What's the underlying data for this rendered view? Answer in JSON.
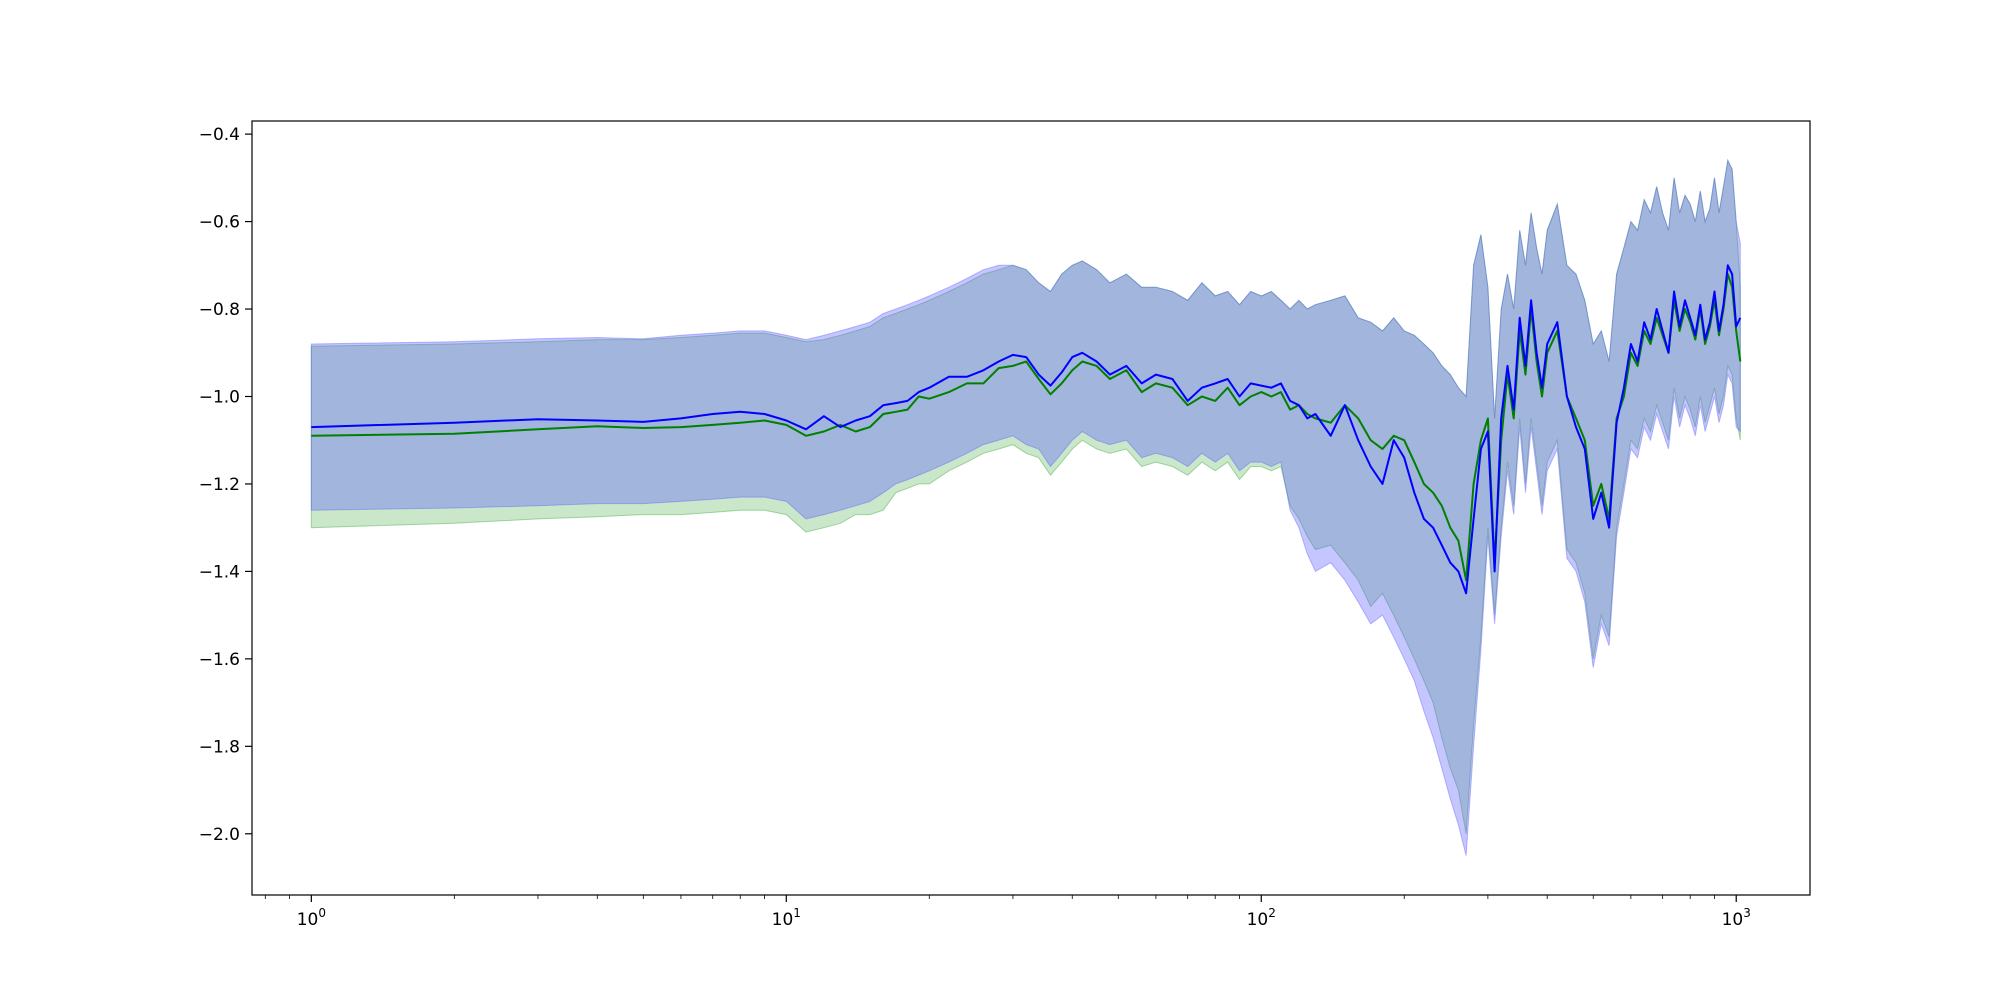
{
  "chart_data": {
    "type": "line",
    "title": "",
    "xlabel": "",
    "ylabel": "",
    "xscale": "log",
    "xlim": [
      0.75,
      1430
    ],
    "ylim": [
      -2.14,
      -0.37
    ],
    "grid": false,
    "legend": "none",
    "x_ticks": [
      {
        "base": "10",
        "exp": "0",
        "value": 1
      },
      {
        "base": "10",
        "exp": "1",
        "value": 10
      },
      {
        "base": "10",
        "exp": "2",
        "value": 100
      },
      {
        "base": "10",
        "exp": "3",
        "value": 1000
      }
    ],
    "y_ticks": [
      -0.4,
      -0.6,
      -0.8,
      -1.0,
      -1.2,
      -1.4,
      -1.6,
      -1.8,
      -2.0
    ],
    "series": [
      {
        "color": "#008000",
        "band_color": "#2ca02c",
        "x": [
          1,
          2,
          3,
          4,
          5,
          6,
          7,
          8,
          9,
          10,
          11,
          12,
          13,
          14,
          15,
          16,
          17,
          18,
          19,
          20,
          22,
          24,
          26,
          28,
          30,
          32,
          34,
          36,
          38,
          40,
          42,
          45,
          48,
          52,
          56,
          60,
          65,
          70,
          75,
          80,
          85,
          90,
          95,
          100,
          105,
          110,
          115,
          120,
          125,
          130,
          140,
          150,
          160,
          170,
          180,
          190,
          200,
          210,
          220,
          230,
          240,
          250,
          260,
          270,
          280,
          290,
          300,
          310,
          320,
          330,
          340,
          350,
          360,
          370,
          380,
          390,
          400,
          420,
          440,
          460,
          480,
          500,
          520,
          540,
          560,
          580,
          600,
          620,
          640,
          660,
          680,
          700,
          720,
          740,
          760,
          780,
          800,
          820,
          840,
          860,
          880,
          900,
          920,
          940,
          960,
          980,
          1000,
          1020
        ],
        "mean": [
          -1.09,
          -1.085,
          -1.075,
          -1.068,
          -1.072,
          -1.07,
          -1.065,
          -1.06,
          -1.055,
          -1.065,
          -1.09,
          -1.08,
          -1.065,
          -1.08,
          -1.07,
          -1.04,
          -1.035,
          -1.03,
          -1.0,
          -1.005,
          -0.99,
          -0.97,
          -0.97,
          -0.935,
          -0.93,
          -0.92,
          -0.96,
          -0.995,
          -0.97,
          -0.94,
          -0.92,
          -0.93,
          -0.96,
          -0.94,
          -0.99,
          -0.97,
          -0.98,
          -1.02,
          -1.0,
          -1.01,
          -0.98,
          -1.02,
          -1.0,
          -0.99,
          -1.0,
          -0.99,
          -1.03,
          -1.02,
          -1.04,
          -1.05,
          -1.06,
          -1.02,
          -1.05,
          -1.1,
          -1.12,
          -1.09,
          -1.1,
          -1.15,
          -1.2,
          -1.22,
          -1.25,
          -1.3,
          -1.33,
          -1.42,
          -1.2,
          -1.1,
          -1.05,
          -1.38,
          -1.1,
          -0.95,
          -1.05,
          -0.85,
          -0.95,
          -0.8,
          -0.92,
          -1.0,
          -0.9,
          -0.85,
          -1.0,
          -1.05,
          -1.1,
          -1.25,
          -1.2,
          -1.28,
          -1.05,
          -1.0,
          -0.9,
          -0.93,
          -0.85,
          -0.88,
          -0.82,
          -0.86,
          -0.9,
          -0.78,
          -0.85,
          -0.8,
          -0.83,
          -0.87,
          -0.8,
          -0.88,
          -0.84,
          -0.78,
          -0.86,
          -0.8,
          -0.72,
          -0.75,
          -0.85,
          -0.92
        ],
        "lower": [
          -1.3,
          -1.29,
          -1.28,
          -1.275,
          -1.27,
          -1.27,
          -1.265,
          -1.26,
          -1.26,
          -1.27,
          -1.31,
          -1.3,
          -1.29,
          -1.27,
          -1.27,
          -1.26,
          -1.22,
          -1.21,
          -1.2,
          -1.2,
          -1.17,
          -1.15,
          -1.13,
          -1.12,
          -1.11,
          -1.13,
          -1.14,
          -1.18,
          -1.15,
          -1.12,
          -1.1,
          -1.12,
          -1.13,
          -1.12,
          -1.16,
          -1.15,
          -1.16,
          -1.18,
          -1.15,
          -1.17,
          -1.15,
          -1.19,
          -1.16,
          -1.16,
          -1.17,
          -1.16,
          -1.25,
          -1.28,
          -1.32,
          -1.35,
          -1.34,
          -1.38,
          -1.42,
          -1.48,
          -1.45,
          -1.5,
          -1.55,
          -1.6,
          -1.65,
          -1.7,
          -1.78,
          -1.85,
          -1.9,
          -2.0,
          -1.75,
          -1.55,
          -1.3,
          -1.5,
          -1.3,
          -1.15,
          -1.25,
          -1.05,
          -1.2,
          -1.05,
          -1.15,
          -1.25,
          -1.15,
          -1.1,
          -1.35,
          -1.38,
          -1.45,
          -1.6,
          -1.5,
          -1.55,
          -1.3,
          -1.2,
          -1.1,
          -1.12,
          -1.05,
          -1.08,
          -1.02,
          -1.06,
          -1.1,
          -0.98,
          -1.05,
          -1.0,
          -1.03,
          -1.07,
          -1.0,
          -1.06,
          -1.02,
          -0.98,
          -1.04,
          -1.0,
          -0.93,
          -0.95,
          -1.05,
          -1.1
        ],
        "upper": [
          -0.885,
          -0.88,
          -0.875,
          -0.87,
          -0.87,
          -0.865,
          -0.86,
          -0.855,
          -0.855,
          -0.865,
          -0.875,
          -0.87,
          -0.86,
          -0.85,
          -0.84,
          -0.82,
          -0.81,
          -0.8,
          -0.79,
          -0.78,
          -0.76,
          -0.74,
          -0.72,
          -0.71,
          -0.7,
          -0.71,
          -0.74,
          -0.76,
          -0.72,
          -0.7,
          -0.69,
          -0.71,
          -0.74,
          -0.72,
          -0.75,
          -0.75,
          -0.76,
          -0.78,
          -0.74,
          -0.77,
          -0.76,
          -0.79,
          -0.76,
          -0.77,
          -0.76,
          -0.78,
          -0.8,
          -0.78,
          -0.8,
          -0.79,
          -0.78,
          -0.77,
          -0.82,
          -0.83,
          -0.85,
          -0.82,
          -0.85,
          -0.86,
          -0.88,
          -0.9,
          -0.93,
          -0.95,
          -0.98,
          -1.0,
          -0.7,
          -0.63,
          -0.75,
          -1.05,
          -0.8,
          -0.72,
          -0.8,
          -0.62,
          -0.7,
          -0.58,
          -0.66,
          -0.72,
          -0.62,
          -0.56,
          -0.7,
          -0.72,
          -0.78,
          -0.88,
          -0.85,
          -0.92,
          -0.72,
          -0.66,
          -0.6,
          -0.62,
          -0.55,
          -0.58,
          -0.52,
          -0.58,
          -0.62,
          -0.5,
          -0.58,
          -0.54,
          -0.56,
          -0.6,
          -0.53,
          -0.6,
          -0.57,
          -0.5,
          -0.58,
          -0.52,
          -0.46,
          -0.48,
          -0.6,
          -0.75
        ]
      },
      {
        "color": "#0000ff",
        "band_color": "#5a5aff",
        "x": [
          1,
          2,
          3,
          4,
          5,
          6,
          7,
          8,
          9,
          10,
          11,
          12,
          13,
          14,
          15,
          16,
          17,
          18,
          19,
          20,
          22,
          24,
          26,
          28,
          30,
          32,
          34,
          36,
          38,
          40,
          42,
          45,
          48,
          52,
          56,
          60,
          65,
          70,
          75,
          80,
          85,
          90,
          95,
          100,
          105,
          110,
          115,
          120,
          125,
          130,
          140,
          150,
          160,
          170,
          180,
          190,
          200,
          210,
          220,
          230,
          240,
          250,
          260,
          270,
          280,
          290,
          300,
          310,
          320,
          330,
          340,
          350,
          360,
          370,
          380,
          390,
          400,
          420,
          440,
          460,
          480,
          500,
          520,
          540,
          560,
          580,
          600,
          620,
          640,
          660,
          680,
          700,
          720,
          740,
          760,
          780,
          800,
          820,
          840,
          860,
          880,
          900,
          920,
          940,
          960,
          980,
          1000,
          1020
        ],
        "mean": [
          -1.07,
          -1.06,
          -1.052,
          -1.055,
          -1.058,
          -1.05,
          -1.04,
          -1.035,
          -1.04,
          -1.055,
          -1.075,
          -1.045,
          -1.07,
          -1.055,
          -1.045,
          -1.02,
          -1.015,
          -1.01,
          -0.99,
          -0.98,
          -0.955,
          -0.955,
          -0.94,
          -0.92,
          -0.905,
          -0.91,
          -0.95,
          -0.975,
          -0.945,
          -0.91,
          -0.9,
          -0.92,
          -0.95,
          -0.93,
          -0.97,
          -0.95,
          -0.96,
          -1.01,
          -0.98,
          -0.97,
          -0.96,
          -1.0,
          -0.97,
          -0.975,
          -0.98,
          -0.97,
          -1.01,
          -1.02,
          -1.05,
          -1.04,
          -1.09,
          -1.02,
          -1.1,
          -1.16,
          -1.2,
          -1.1,
          -1.14,
          -1.22,
          -1.28,
          -1.3,
          -1.34,
          -1.38,
          -1.4,
          -1.45,
          -1.28,
          -1.12,
          -1.08,
          -1.4,
          -1.05,
          -0.93,
          -1.03,
          -0.82,
          -0.93,
          -0.78,
          -0.9,
          -0.98,
          -0.88,
          -0.83,
          -1.0,
          -1.07,
          -1.12,
          -1.28,
          -1.22,
          -1.3,
          -1.06,
          -0.98,
          -0.88,
          -0.92,
          -0.83,
          -0.87,
          -0.8,
          -0.85,
          -0.9,
          -0.76,
          -0.84,
          -0.78,
          -0.82,
          -0.86,
          -0.79,
          -0.87,
          -0.83,
          -0.76,
          -0.85,
          -0.79,
          -0.7,
          -0.72,
          -0.84,
          -0.82
        ],
        "lower": [
          -1.26,
          -1.255,
          -1.25,
          -1.245,
          -1.245,
          -1.24,
          -1.235,
          -1.23,
          -1.23,
          -1.24,
          -1.28,
          -1.27,
          -1.26,
          -1.25,
          -1.24,
          -1.22,
          -1.2,
          -1.19,
          -1.18,
          -1.17,
          -1.15,
          -1.13,
          -1.11,
          -1.1,
          -1.09,
          -1.11,
          -1.12,
          -1.16,
          -1.13,
          -1.1,
          -1.08,
          -1.1,
          -1.11,
          -1.1,
          -1.14,
          -1.13,
          -1.14,
          -1.16,
          -1.13,
          -1.15,
          -1.13,
          -1.17,
          -1.15,
          -1.15,
          -1.16,
          -1.15,
          -1.26,
          -1.3,
          -1.36,
          -1.4,
          -1.38,
          -1.42,
          -1.47,
          -1.52,
          -1.5,
          -1.55,
          -1.6,
          -1.65,
          -1.72,
          -1.78,
          -1.85,
          -1.92,
          -1.98,
          -2.05,
          -1.8,
          -1.58,
          -1.32,
          -1.52,
          -1.32,
          -1.17,
          -1.27,
          -1.07,
          -1.22,
          -1.07,
          -1.17,
          -1.27,
          -1.17,
          -1.12,
          -1.37,
          -1.4,
          -1.47,
          -1.62,
          -1.52,
          -1.57,
          -1.32,
          -1.22,
          -1.12,
          -1.14,
          -1.07,
          -1.1,
          -1.04,
          -1.08,
          -1.12,
          -1.0,
          -1.07,
          -1.02,
          -1.05,
          -1.09,
          -1.02,
          -1.08,
          -1.04,
          -1.0,
          -1.06,
          -1.02,
          -0.95,
          -0.97,
          -1.07,
          -1.08
        ],
        "upper": [
          -0.88,
          -0.875,
          -0.868,
          -0.865,
          -0.868,
          -0.86,
          -0.855,
          -0.85,
          -0.85,
          -0.86,
          -0.87,
          -0.86,
          -0.85,
          -0.84,
          -0.83,
          -0.81,
          -0.8,
          -0.79,
          -0.78,
          -0.77,
          -0.75,
          -0.73,
          -0.71,
          -0.7,
          -0.7,
          -0.71,
          -0.74,
          -0.76,
          -0.72,
          -0.7,
          -0.69,
          -0.71,
          -0.74,
          -0.72,
          -0.75,
          -0.75,
          -0.76,
          -0.78,
          -0.74,
          -0.77,
          -0.76,
          -0.79,
          -0.76,
          -0.77,
          -0.76,
          -0.78,
          -0.8,
          -0.78,
          -0.8,
          -0.79,
          -0.78,
          -0.77,
          -0.82,
          -0.83,
          -0.85,
          -0.82,
          -0.85,
          -0.86,
          -0.88,
          -0.9,
          -0.93,
          -0.95,
          -0.98,
          -1.0,
          -0.7,
          -0.63,
          -0.75,
          -1.05,
          -0.8,
          -0.72,
          -0.8,
          -0.62,
          -0.7,
          -0.58,
          -0.66,
          -0.72,
          -0.62,
          -0.56,
          -0.7,
          -0.72,
          -0.78,
          -0.88,
          -0.85,
          -0.92,
          -0.72,
          -0.66,
          -0.6,
          -0.62,
          -0.55,
          -0.58,
          -0.52,
          -0.58,
          -0.62,
          -0.5,
          -0.58,
          -0.54,
          -0.56,
          -0.6,
          -0.53,
          -0.6,
          -0.57,
          -0.5,
          -0.58,
          -0.52,
          -0.46,
          -0.48,
          -0.6,
          -0.65
        ]
      }
    ]
  }
}
